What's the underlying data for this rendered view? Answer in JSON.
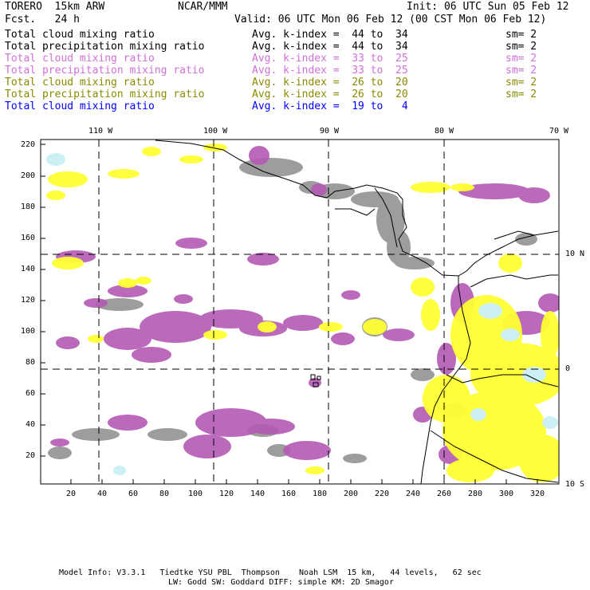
{
  "header": {
    "model": "TORERO  15km ARW",
    "org": "NCAR/MMM",
    "init": "Init: 06 UTC Sun 05 Feb 12",
    "fcst": "Fcst.   24 h",
    "valid": "Valid: 06 UTC Mon 06 Feb 12 (00 CST Mon 06 Feb 12)"
  },
  "fields": [
    {
      "name": "Total cloud mixing ratio",
      "kindex": "Avg. k-index =  44 to  34",
      "sm": "sm= 2",
      "color": "#000000"
    },
    {
      "name": "Total precipitation mixing ratio",
      "kindex": "Avg. k-index =  44 to  34",
      "sm": "sm= 2",
      "color": "#000000"
    },
    {
      "name": "Total cloud mixing ratio",
      "kindex": "Avg. k-index =  33 to  25",
      "sm": "sm= 2",
      "color": "#d070d8"
    },
    {
      "name": "Total precipitation mixing ratio",
      "kindex": "Avg. k-index =  33 to  25",
      "sm": "sm= 2",
      "color": "#d070d8"
    },
    {
      "name": "Total cloud mixing ratio",
      "kindex": "Avg. k-index =  26 to  20",
      "sm": "sm= 2",
      "color": "#8a8a00"
    },
    {
      "name": "Total precipitation mixing ratio",
      "kindex": "Avg. k-index =  26 to  20",
      "sm": "sm= 2",
      "color": "#8a8a00"
    },
    {
      "name": "Total cloud mixing ratio",
      "kindex": "Avg. k-index =  19 to   4",
      "sm": "",
      "color": "#0000ff"
    }
  ],
  "map": {
    "top_lon_labels": [
      "110 W",
      "100 W",
      "90 W",
      "80 W",
      "70 W"
    ],
    "right_lat_labels": [
      "10 N",
      "0",
      "10 S"
    ],
    "left_ticks": [
      "220",
      "200",
      "180",
      "160",
      "140",
      "120",
      "100",
      "80",
      "60",
      "40",
      "20"
    ],
    "bottom_ticks": [
      "20",
      "40",
      "60",
      "80",
      "100",
      "120",
      "140",
      "160",
      "180",
      "200",
      "220",
      "240",
      "260",
      "280",
      "300",
      "320"
    ],
    "colors": {
      "gray": "#8c8c8c",
      "purple": "#b45ab4",
      "yellow": "#ffff33",
      "cyan": "#cdf0f5"
    }
  },
  "footer": {
    "line1": "Model Info: V3.3.1   Tiedtke YSU PBL  Thompson    Noah LSM  15 km,   44 levels,   62 sec",
    "line2": "LW: Godd SW: Goddard DIFF: simple KM: 2D Smagor"
  }
}
